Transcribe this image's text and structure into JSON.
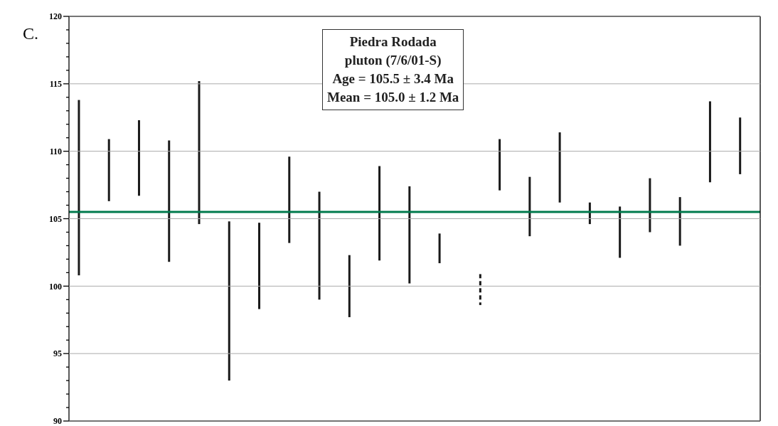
{
  "chart_data": {
    "type": "bar",
    "categories": [
      null,
      null,
      null,
      null,
      null,
      null,
      null,
      null,
      null,
      null,
      null,
      null,
      null,
      null,
      null,
      null,
      null,
      null,
      null,
      null,
      null,
      null,
      null
    ],
    "series": [
      {
        "color": "#1a1a1a",
        "line_style": "solid",
        "base": [
          100.8,
          106.3,
          106.7,
          101.8,
          104.6,
          93.0,
          98.3,
          103.2,
          99.0,
          97.7,
          101.9,
          100.2,
          101.7,
          null,
          107.1,
          103.7,
          106.2,
          104.6,
          102.1,
          104.0,
          103.0,
          107.7,
          108.3
        ],
        "values": [
          13.0,
          4.6,
          5.6,
          9.0,
          10.6,
          11.8,
          6.4,
          6.4,
          8.0,
          4.6,
          7.0,
          7.2,
          2.2,
          null,
          3.8,
          4.4,
          5.2,
          1.6,
          3.8,
          4.0,
          3.6,
          6.0,
          4.2
        ]
      },
      {
        "color": "#1a1a1a",
        "line_style": "dashed",
        "base": [
          null,
          null,
          null,
          null,
          null,
          null,
          null,
          null,
          null,
          null,
          null,
          null,
          null,
          98.6,
          null,
          null,
          null,
          null,
          null,
          null,
          null,
          null,
          null
        ],
        "values": [
          null,
          null,
          null,
          null,
          null,
          null,
          null,
          null,
          null,
          null,
          null,
          null,
          null,
          2.3,
          null,
          null,
          null,
          null,
          null,
          null,
          null,
          null,
          null
        ]
      }
    ],
    "ylim": [
      90,
      120
    ],
    "yticks": [
      90,
      {
        "value": 91,
        "label": null
      },
      {
        "value": 92,
        "label": null
      },
      {
        "value": 93,
        "label": null
      },
      {
        "value": 94,
        "label": null
      },
      95,
      {
        "value": 96,
        "label": null
      },
      {
        "value": 97,
        "label": null
      },
      {
        "value": 98,
        "label": null
      },
      {
        "value": 99,
        "label": null
      },
      100,
      {
        "value": 101,
        "label": null
      },
      {
        "value": 102,
        "label": null
      },
      {
        "value": 103,
        "label": null
      },
      {
        "value": 104,
        "label": null
      },
      105,
      {
        "value": 106,
        "label": null
      },
      {
        "value": 107,
        "label": null
      },
      {
        "value": 108,
        "label": null
      },
      {
        "value": 109,
        "label": null
      },
      110,
      {
        "value": 111,
        "label": null
      },
      {
        "value": 112,
        "label": null
      },
      {
        "value": 113,
        "label": null
      },
      {
        "value": 114,
        "label": null
      },
      115,
      {
        "value": 116,
        "label": null
      },
      {
        "value": 117,
        "label": null
      },
      {
        "value": 118,
        "label": null
      },
      {
        "value": 119,
        "label": null
      },
      120
    ],
    "grid": "y",
    "ref_lines": [
      {
        "axis": "y",
        "value": 105.5,
        "label": null,
        "color": "#007a4d"
      }
    ],
    "annotations": [
      "C.",
      "Piedra Rodada",
      "pluton (7/6/01-S)",
      "Age = 105.5 ± 3.4 Ma",
      "Mean = 105.0 ± 1.2 Ma"
    ]
  }
}
